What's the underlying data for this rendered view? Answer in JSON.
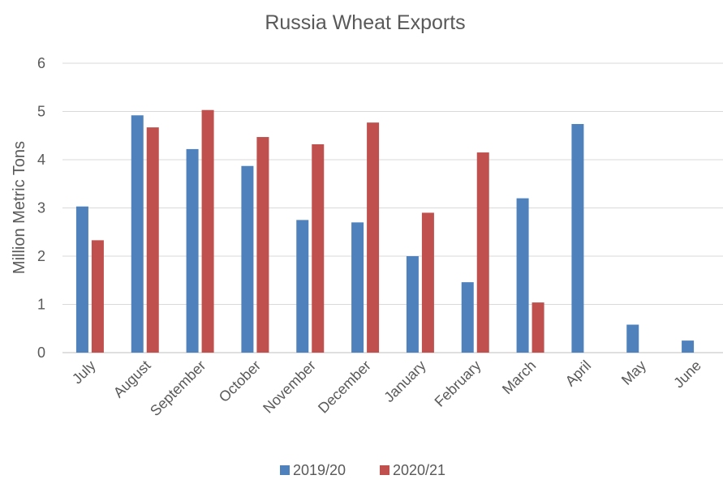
{
  "chart_data": {
    "type": "bar",
    "title": "Russia Wheat Exports",
    "xlabel": "",
    "ylabel": "Million Metric Tons",
    "ylim": [
      0,
      6
    ],
    "yticks": [
      "0",
      "1",
      "2",
      "3",
      "4",
      "5",
      "6"
    ],
    "grid": true,
    "legend_position": "bottom",
    "categories": [
      "July",
      "August",
      "September",
      "October",
      "November",
      "December",
      "January",
      "February",
      "March",
      "April",
      "May",
      "June"
    ],
    "series": [
      {
        "name": "2019/20",
        "color": "#4F81BD",
        "values": [
          3.03,
          4.92,
          4.22,
          3.87,
          2.75,
          2.7,
          2.0,
          1.46,
          3.2,
          4.74,
          0.58,
          0.25
        ]
      },
      {
        "name": "2020/21",
        "color": "#C0504D",
        "values": [
          2.33,
          4.67,
          5.03,
          4.47,
          4.32,
          4.77,
          2.9,
          4.15,
          1.04,
          null,
          null,
          null
        ]
      }
    ]
  }
}
